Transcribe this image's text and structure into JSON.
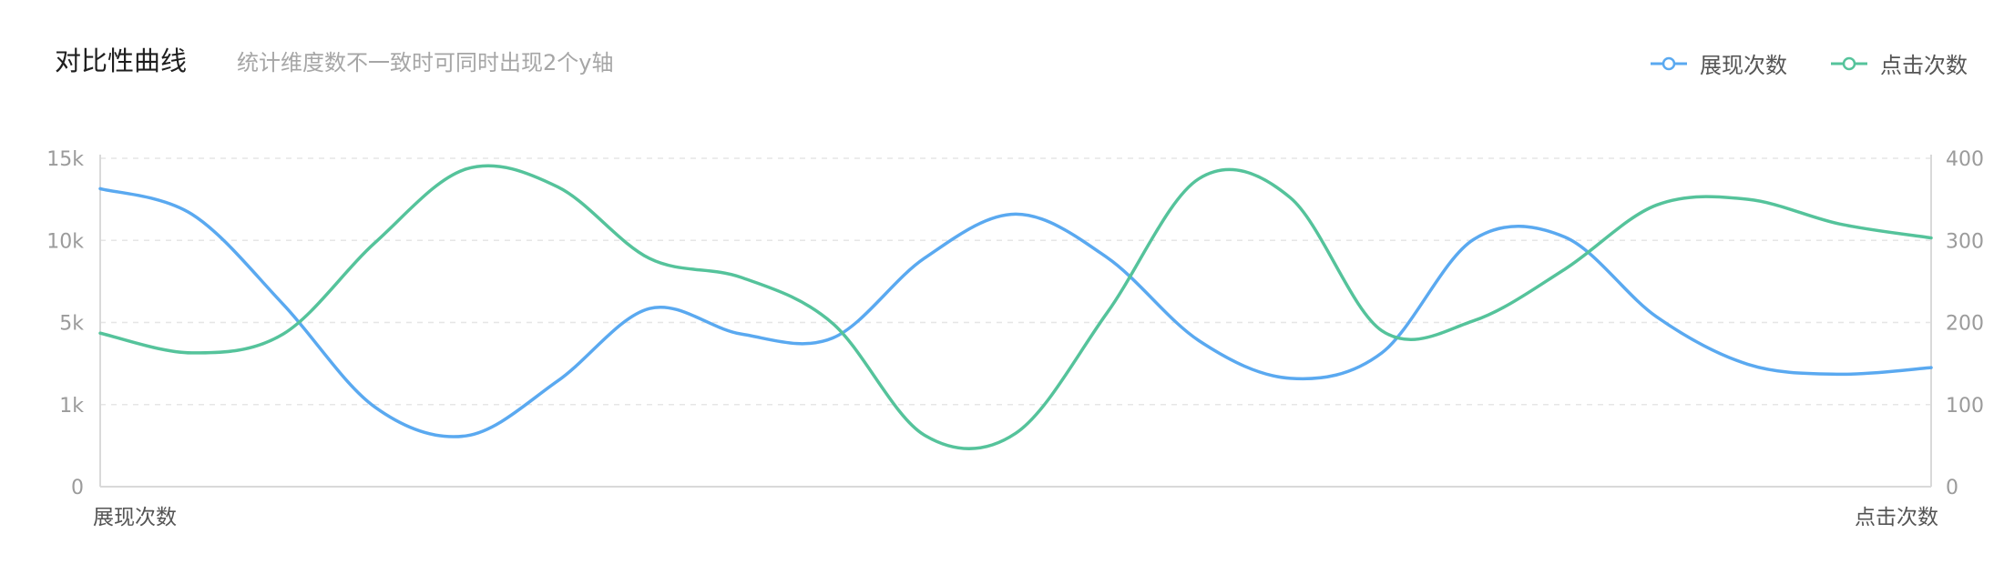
{
  "header": {
    "title": "对比性曲线",
    "subtitle": "统计维度数不一致时可同时出现2个y轴"
  },
  "colors": {
    "series_blue": "#5aa9f0",
    "series_green": "#55c39b",
    "grid": "#e6e6e6",
    "axis": "#d9d9d9"
  },
  "chart_data": {
    "type": "line",
    "smooth": true,
    "grid": true,
    "legend_position": "top-right",
    "x": [
      0,
      1,
      2,
      3,
      4,
      5,
      6,
      7,
      8,
      9,
      10,
      11,
      12,
      13,
      14,
      15,
      16,
      17,
      18,
      19,
      20
    ],
    "left_axis": {
      "label": "展现次数",
      "ticks": [
        "0",
        "1k",
        "5k",
        "10k",
        "15k"
      ],
      "ylim": [
        0,
        4
      ]
    },
    "right_axis": {
      "label": "点击次数",
      "ticks": [
        "0",
        "100",
        "200",
        "300",
        "400"
      ],
      "ylim": [
        0,
        400
      ]
    },
    "series": [
      {
        "name": "展现次数",
        "axis": "left",
        "color": "#5aa9f0",
        "values": [
          3.63,
          3.32,
          2.22,
          0.97,
          0.62,
          1.29,
          2.17,
          1.86,
          1.81,
          2.78,
          3.32,
          2.79,
          1.78,
          1.32,
          1.63,
          3.01,
          3.04,
          2.07,
          1.49,
          1.37,
          1.45
        ]
      },
      {
        "name": "点击次数",
        "axis": "right",
        "color": "#55c39b",
        "values": [
          187,
          163,
          186,
          297,
          387,
          365,
          278,
          255,
          199,
          63,
          65,
          212,
          375,
          352,
          190,
          202,
          265,
          343,
          350,
          320,
          303
        ]
      }
    ]
  }
}
